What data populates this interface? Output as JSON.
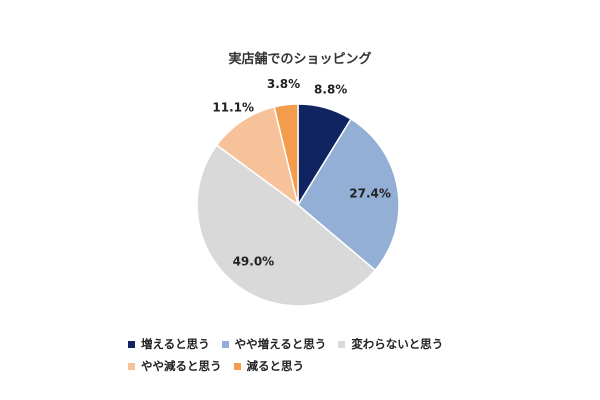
{
  "chart_data": {
    "type": "pie",
    "title": "実店舗でのショッピング",
    "categories": [
      "増えると思う",
      "やや増えると思う",
      "変わらないと思う",
      "やや減ると思う",
      "減ると思う"
    ],
    "values": [
      8.8,
      27.4,
      49.0,
      11.1,
      3.8
    ],
    "value_labels": [
      "8.8%",
      "27.4%",
      "49.0%",
      "11.1%",
      "3.8%"
    ],
    "colors": [
      "#0f2460",
      "#93afd6",
      "#d9d9d9",
      "#f7c29a",
      "#f29c4c"
    ],
    "start_angle_deg": 0,
    "direction": "clockwise",
    "legend_position": "bottom"
  }
}
